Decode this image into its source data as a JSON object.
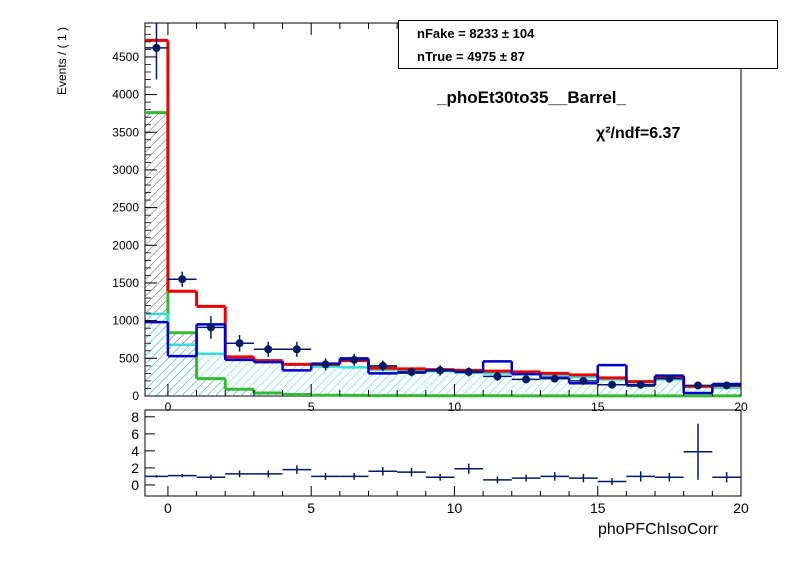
{
  "legend": {
    "row1": "nFake =  8233 ± 104",
    "row2": "nTrue =  4975 ± 87"
  },
  "title": "_phoEt30to35__Barrel_",
  "chi2_label": "χ²/ndf=6.37",
  "ylabel": "Events / ( 1 )",
  "xlabel": "phoPFChIsoCorr",
  "chart_data": [
    {
      "type": "histogram",
      "panel": "main",
      "xlim": [
        -0.8,
        20
      ],
      "ylim": [
        0,
        4950
      ],
      "bin_edges": [
        -0.8,
        0,
        1,
        2,
        3,
        4,
        5,
        6,
        7,
        8,
        9,
        10,
        11,
        12,
        13,
        14,
        15,
        16,
        17,
        18,
        19,
        20
      ],
      "x_ticks": [
        0,
        5,
        10,
        15,
        20
      ],
      "y_ticks": [
        0,
        500,
        1000,
        1500,
        2000,
        2500,
        3000,
        3500,
        4000,
        4500
      ],
      "series": [
        {
          "style": "red-step",
          "color": "#ee0000",
          "values": [
            4720,
            1390,
            1190,
            520,
            470,
            420,
            420,
            470,
            370,
            360,
            350,
            340,
            330,
            320,
            300,
            280,
            240,
            190,
            250,
            130,
            140
          ]
        },
        {
          "style": "blue-step",
          "color": "#0000cc",
          "values": [
            980,
            530,
            950,
            480,
            450,
            340,
            430,
            500,
            300,
            310,
            340,
            320,
            460,
            290,
            240,
            170,
            410,
            140,
            270,
            40,
            160
          ]
        },
        {
          "style": "cyan-step",
          "color": "#33dddd",
          "values": [
            1090,
            680,
            560,
            510,
            470,
            420,
            390,
            380,
            350,
            340,
            330,
            310,
            300,
            290,
            270,
            250,
            220,
            180,
            220,
            120,
            110
          ]
        },
        {
          "style": "green-step",
          "color": "#33bb33",
          "values": [
            3760,
            840,
            230,
            90,
            40,
            20,
            10,
            8,
            5,
            5,
            4,
            3,
            3,
            2,
            2,
            2,
            2,
            1,
            1,
            1,
            1
          ]
        },
        {
          "style": "data-points",
          "color": "#001b66",
          "values": [
            4620,
            1550,
            910,
            700,
            620,
            620,
            420,
            480,
            400,
            320,
            340,
            320,
            260,
            220,
            230,
            200,
            150,
            150,
            230,
            140,
            140
          ],
          "errors": [
            420,
            100,
            150,
            110,
            100,
            100,
            80,
            80,
            70,
            60,
            70,
            60,
            60,
            50,
            50,
            50,
            40,
            40,
            50,
            40,
            40
          ]
        }
      ]
    },
    {
      "type": "scatter",
      "panel": "ratio",
      "xlim": [
        -0.8,
        20
      ],
      "ylim": [
        -1.3,
        8.8
      ],
      "x_ticks": [
        0,
        5,
        10,
        15,
        20
      ],
      "y_ticks": [
        0,
        2,
        4,
        6,
        8
      ],
      "x": [
        -0.4,
        0.5,
        1.5,
        2.5,
        3.5,
        4.5,
        5.5,
        6.5,
        7.5,
        8.5,
        9.5,
        10.5,
        11.5,
        12.5,
        13.5,
        14.5,
        15.5,
        16.5,
        17.5,
        18.5,
        19.5
      ],
      "values": [
        1.0,
        1.1,
        0.9,
        1.3,
        1.3,
        1.8,
        1.0,
        1.0,
        1.6,
        1.5,
        0.9,
        1.9,
        0.6,
        0.8,
        1.0,
        0.8,
        0.4,
        1.0,
        0.9,
        3.9,
        0.9
      ],
      "errors": [
        0.15,
        0.2,
        0.3,
        0.4,
        0.4,
        0.5,
        0.4,
        0.4,
        0.5,
        0.5,
        0.4,
        0.6,
        0.4,
        0.4,
        0.5,
        0.5,
        0.4,
        0.6,
        0.5,
        3.3,
        0.6
      ]
    }
  ]
}
